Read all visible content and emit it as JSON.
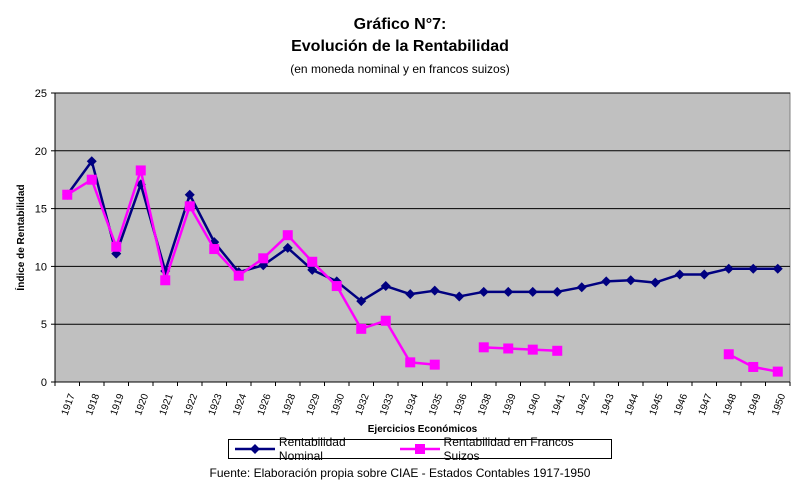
{
  "header": {
    "title_line1": "Gráfico N°7:",
    "title_line2": "Evolución de la Rentabilidad",
    "subtitle": "(en moneda nominal y en francos suizos)"
  },
  "footer": {
    "source": "Fuente: Elaboración propia sobre CIAE - Estados Contables 1917-1950"
  },
  "chart_data": {
    "type": "line",
    "title": "Gráfico N°7: Evolución de la Rentabilidad",
    "subtitle": "(en moneda nominal y en francos suizos)",
    "xlabel": "Ejercicios Económicos",
    "ylabel": "Índice de Rentabilidad",
    "ylim": [
      0,
      25
    ],
    "yticks": [
      0,
      5,
      10,
      15,
      20,
      25
    ],
    "grid": true,
    "legend_position": "bottom",
    "plot_background": "#c0c0c0",
    "categories": [
      "1917",
      "1918",
      "1919",
      "1920",
      "1921",
      "1922",
      "1923",
      "1924",
      "1926",
      "1928",
      "1929",
      "1930",
      "1932",
      "1933",
      "1934",
      "1935",
      "1936",
      "1938",
      "1939",
      "1940",
      "1941",
      "1942",
      "1943",
      "1944",
      "1945",
      "1946",
      "1947",
      "1948",
      "1949",
      "1950"
    ],
    "series": [
      {
        "name": "Rentabilidad Nominal",
        "color": "#000080",
        "marker": "diamond",
        "values": [
          16.2,
          19.1,
          11.1,
          17.1,
          9.6,
          16.2,
          12.1,
          9.5,
          10.1,
          11.6,
          9.7,
          8.7,
          7.0,
          8.3,
          7.6,
          7.9,
          7.4,
          7.8,
          7.8,
          7.8,
          7.8,
          8.2,
          8.7,
          8.8,
          8.6,
          9.3,
          9.3,
          9.8,
          9.8,
          9.8
        ]
      },
      {
        "name": "Rentabilidad en Francos Suizos",
        "color": "#ff00ff",
        "marker": "square",
        "values": [
          16.2,
          17.5,
          11.7,
          18.3,
          8.8,
          15.2,
          11.5,
          9.2,
          10.7,
          12.7,
          10.4,
          8.3,
          4.6,
          5.3,
          1.7,
          1.5,
          null,
          3.0,
          2.9,
          2.8,
          2.7,
          null,
          null,
          null,
          null,
          null,
          null,
          2.4,
          1.3,
          0.9
        ]
      }
    ]
  }
}
